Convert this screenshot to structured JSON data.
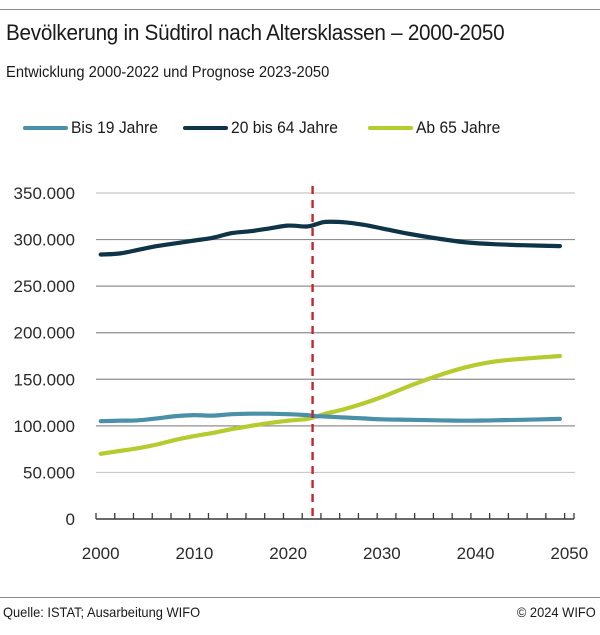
{
  "header": {
    "title": "Bevölkerung in Südtirol nach Altersklassen – 2000-2050",
    "subtitle": "Entwicklung 2000-2022 und Prognose 2023-2050"
  },
  "footer": {
    "source": "Quelle: ISTAT; Ausarbeitung WIFO",
    "copyright": "© 2024 WIFO"
  },
  "chart_data": {
    "type": "line",
    "title": "Bevölkerung in Südtirol nach Altersklassen – 2000-2050",
    "subtitle": "Entwicklung 2000-2022 und Prognose 2023-2050",
    "xlabel": "",
    "ylabel": "",
    "xlim": [
      2000,
      2050
    ],
    "ylim": [
      0,
      350000
    ],
    "yticks": [
      0,
      50000,
      100000,
      150000,
      200000,
      250000,
      300000,
      350000
    ],
    "ytick_labels": [
      "0",
      "50.000",
      "100.000",
      "150.000",
      "200.000",
      "250.000",
      "300.000",
      "350.000"
    ],
    "xticks": [
      2000,
      2010,
      2020,
      2030,
      2040,
      2050
    ],
    "xtick_labels": [
      "2000",
      "2010",
      "2020",
      "2030",
      "2040",
      "2050"
    ],
    "grid": true,
    "legend_position": "top",
    "annotations": [
      {
        "type": "vertical-dashed-line",
        "x": 2023,
        "meaning": "Beginn Prognose",
        "color": "#c1272d"
      }
    ],
    "series": [
      {
        "name": "Bis 19 Jahre",
        "color": "#4a90a8",
        "x": [
          2000,
          2002,
          2004,
          2006,
          2008,
          2010,
          2012,
          2014,
          2016,
          2018,
          2020,
          2022,
          2023,
          2024,
          2026,
          2028,
          2030,
          2033,
          2036,
          2039,
          2042,
          2045,
          2049
        ],
        "values": [
          105000,
          105500,
          106000,
          108000,
          110500,
          111500,
          111000,
          112500,
          113000,
          113000,
          112500,
          111500,
          110500,
          110000,
          109000,
          108000,
          107000,
          106500,
          106000,
          105500,
          106000,
          106500,
          107500
        ]
      },
      {
        "name": "20 bis 64 Jahre",
        "color": "#0d3447",
        "x": [
          2000,
          2002,
          2004,
          2006,
          2008,
          2010,
          2012,
          2014,
          2016,
          2018,
          2020,
          2022,
          2023,
          2024,
          2026,
          2028,
          2030,
          2033,
          2036,
          2039,
          2042,
          2045,
          2049
        ],
        "values": [
          284000,
          285000,
          289000,
          293000,
          296000,
          299000,
          302000,
          307000,
          309000,
          312000,
          315000,
          314000,
          316500,
          319000,
          318500,
          316000,
          312000,
          306000,
          301000,
          297000,
          295000,
          294000,
          293000
        ]
      },
      {
        "name": "Ab 65 Jahre",
        "color": "#b5cb2e",
        "x": [
          2000,
          2002,
          2004,
          2006,
          2008,
          2010,
          2012,
          2014,
          2016,
          2018,
          2020,
          2022,
          2023,
          2024,
          2026,
          2028,
          2030,
          2033,
          2036,
          2039,
          2042,
          2045,
          2049
        ],
        "values": [
          70000,
          73000,
          76000,
          80000,
          85000,
          89000,
          92500,
          96500,
          100000,
          103000,
          105500,
          107500,
          110000,
          113000,
          118000,
          124000,
          131000,
          143000,
          154000,
          163000,
          169000,
          172000,
          175000
        ]
      }
    ]
  }
}
